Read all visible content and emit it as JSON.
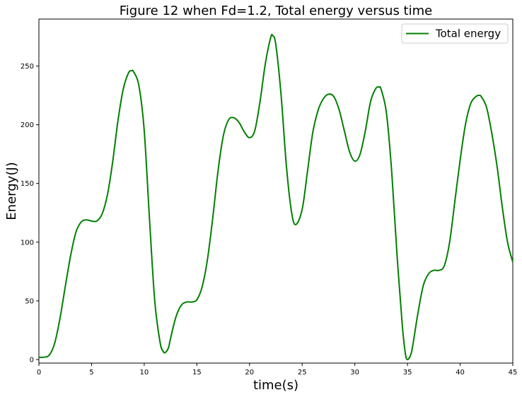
{
  "chart_data": {
    "type": "line",
    "title": "Figure 12 when Fd=1.2, Total energy versus time",
    "xlabel": "time(s)",
    "ylabel": "Energy(J)",
    "xlim": [
      0,
      45
    ],
    "ylim": [
      -3,
      290
    ],
    "x_ticks": [
      0,
      5,
      10,
      15,
      20,
      25,
      30,
      35,
      40,
      45
    ],
    "y_ticks": [
      0,
      50,
      100,
      150,
      200,
      250
    ],
    "grid": false,
    "legend_position": "top-right",
    "series": [
      {
        "name": "Total energy",
        "color": "#008000",
        "points": [
          [
            0,
            2
          ],
          [
            0.5,
            2
          ],
          [
            1,
            4
          ],
          [
            1.5,
            14
          ],
          [
            2,
            35
          ],
          [
            2.5,
            62
          ],
          [
            3,
            88
          ],
          [
            3.5,
            108
          ],
          [
            4,
            117
          ],
          [
            4.5,
            119
          ],
          [
            5,
            118
          ],
          [
            5.5,
            118
          ],
          [
            6,
            124
          ],
          [
            6.5,
            140
          ],
          [
            7,
            168
          ],
          [
            7.5,
            203
          ],
          [
            8,
            230
          ],
          [
            8.5,
            244
          ],
          [
            8.8,
            246
          ],
          [
            9,
            245
          ],
          [
            9.5,
            233
          ],
          [
            10,
            195
          ],
          [
            10.5,
            120
          ],
          [
            11,
            50
          ],
          [
            11.5,
            15
          ],
          [
            11.8,
            7
          ],
          [
            12,
            6
          ],
          [
            12.3,
            10
          ],
          [
            12.5,
            18
          ],
          [
            13,
            36
          ],
          [
            13.5,
            46
          ],
          [
            14,
            49
          ],
          [
            14.5,
            49
          ],
          [
            15,
            51
          ],
          [
            15.5,
            62
          ],
          [
            16,
            85
          ],
          [
            16.5,
            120
          ],
          [
            17,
            160
          ],
          [
            17.5,
            190
          ],
          [
            18,
            204
          ],
          [
            18.5,
            206
          ],
          [
            19,
            202
          ],
          [
            19.5,
            194
          ],
          [
            20,
            189
          ],
          [
            20.5,
            195
          ],
          [
            21,
            220
          ],
          [
            21.5,
            252
          ],
          [
            22,
            274
          ],
          [
            22.2,
            276
          ],
          [
            22.5,
            268
          ],
          [
            23,
            225
          ],
          [
            23.5,
            165
          ],
          [
            24,
            125
          ],
          [
            24.4,
            115
          ],
          [
            25,
            128
          ],
          [
            25.5,
            160
          ],
          [
            26,
            193
          ],
          [
            26.5,
            212
          ],
          [
            27,
            222
          ],
          [
            27.5,
            226
          ],
          [
            28,
            224
          ],
          [
            28.5,
            213
          ],
          [
            29,
            195
          ],
          [
            29.5,
            177
          ],
          [
            30,
            169
          ],
          [
            30.5,
            175
          ],
          [
            31,
            195
          ],
          [
            31.5,
            220
          ],
          [
            32,
            231
          ],
          [
            32.3,
            232
          ],
          [
            32.5,
            230
          ],
          [
            33,
            210
          ],
          [
            33.5,
            160
          ],
          [
            34,
            90
          ],
          [
            34.5,
            30
          ],
          [
            34.8,
            5
          ],
          [
            35,
            0
          ],
          [
            35.3,
            4
          ],
          [
            35.5,
            12
          ],
          [
            36,
            40
          ],
          [
            36.5,
            63
          ],
          [
            37,
            73
          ],
          [
            37.5,
            76
          ],
          [
            38,
            76
          ],
          [
            38.5,
            80
          ],
          [
            39,
            100
          ],
          [
            39.5,
            135
          ],
          [
            40,
            170
          ],
          [
            40.5,
            200
          ],
          [
            41,
            218
          ],
          [
            41.5,
            224
          ],
          [
            41.8,
            225
          ],
          [
            42,
            224
          ],
          [
            42.5,
            215
          ],
          [
            43,
            193
          ],
          [
            43.5,
            165
          ],
          [
            44,
            130
          ],
          [
            44.5,
            100
          ],
          [
            45,
            83
          ]
        ]
      }
    ]
  }
}
